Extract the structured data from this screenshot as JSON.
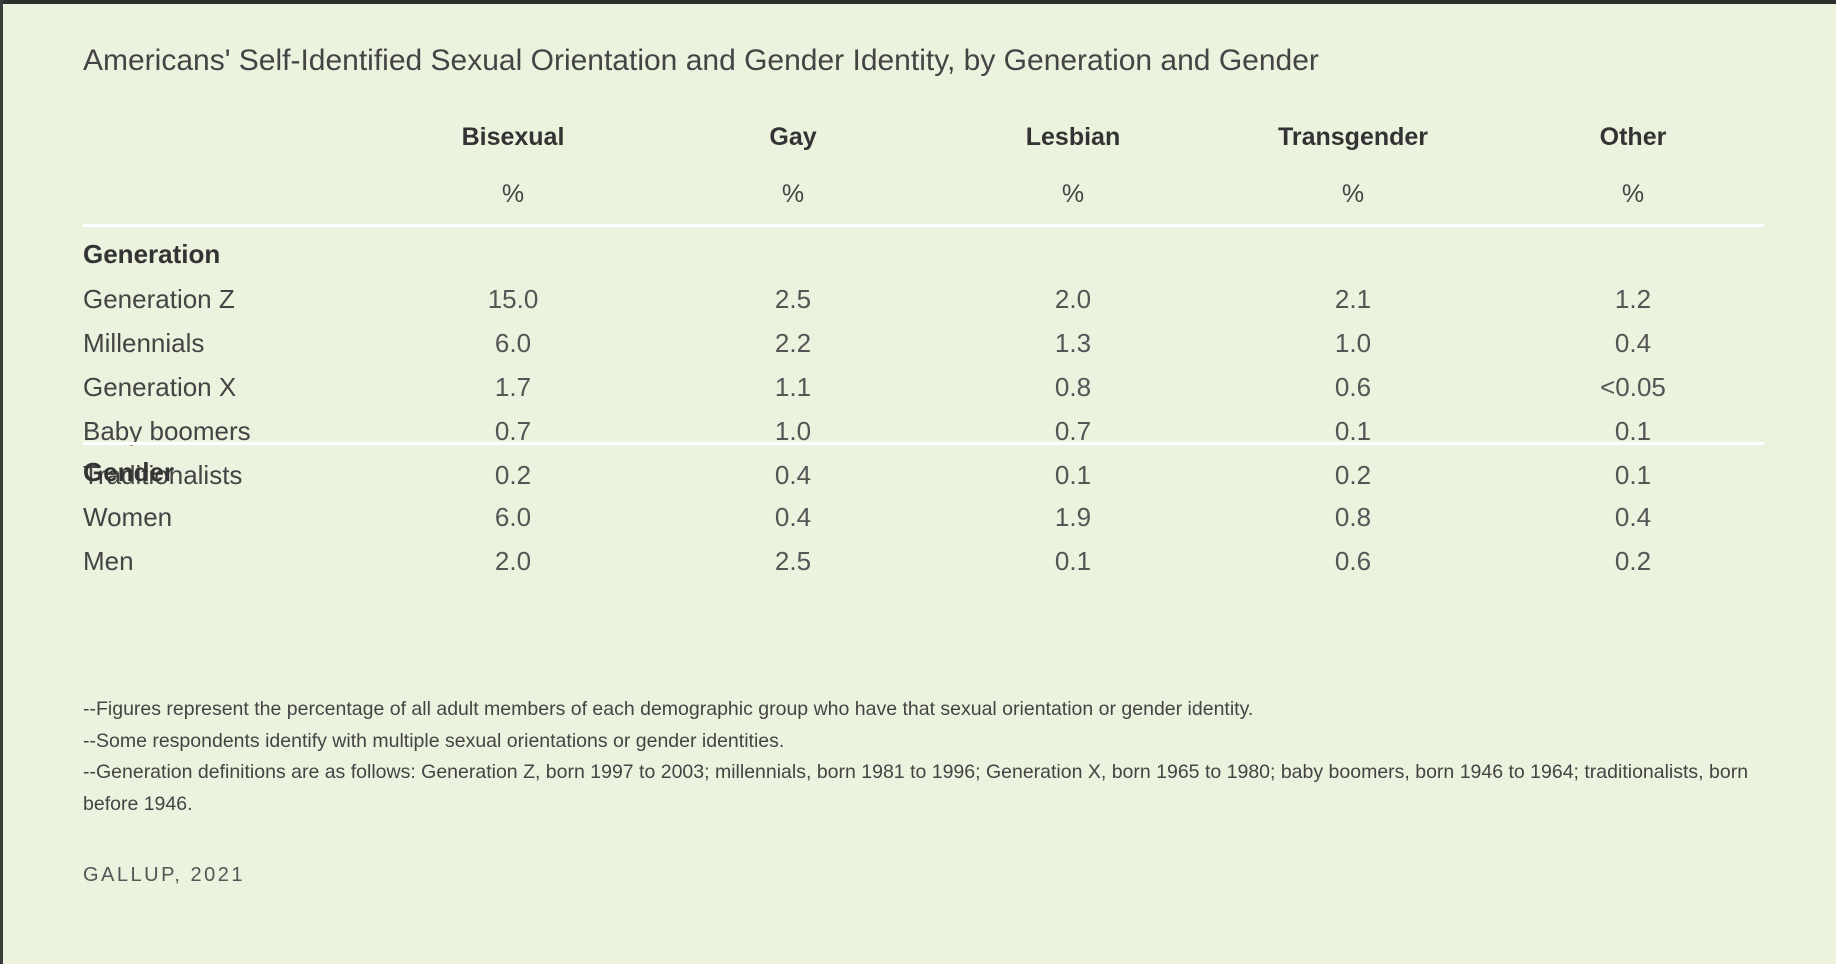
{
  "title": "Americans' Self-Identified Sexual Orientation and Gender Identity, by Generation and Gender",
  "table": {
    "columns": [
      "Bisexual",
      "Gay",
      "Lesbian",
      "Transgender",
      "Other"
    ],
    "units": [
      "%",
      "%",
      "%",
      "%",
      "%"
    ],
    "sections": [
      {
        "label": "Generation",
        "rows": [
          {
            "label": "Generation Z",
            "cells": [
              "15.0",
              "2.5",
              "2.0",
              "2.1",
              "1.2"
            ]
          },
          {
            "label": "Millennials",
            "cells": [
              "6.0",
              "2.2",
              "1.3",
              "1.0",
              "0.4"
            ]
          },
          {
            "label": "Generation X",
            "cells": [
              "1.7",
              "1.1",
              "0.8",
              "0.6",
              "<0.05"
            ]
          },
          {
            "label": "Baby boomers",
            "cells": [
              "0.7",
              "1.0",
              "0.7",
              "0.1",
              "0.1"
            ]
          },
          {
            "label": "Traditionalists",
            "cells": [
              "0.2",
              "0.4",
              "0.1",
              "0.2",
              "0.1"
            ]
          }
        ]
      },
      {
        "label": "Gender",
        "rows": [
          {
            "label": "Women",
            "cells": [
              "6.0",
              "0.4",
              "1.9",
              "0.8",
              "0.4"
            ]
          },
          {
            "label": "Men",
            "cells": [
              "2.0",
              "2.5",
              "0.1",
              "0.6",
              "0.2"
            ]
          }
        ]
      }
    ]
  },
  "footnotes": [
    "--Figures represent the percentage of all adult members of each demographic group who have that sexual orientation or gender identity.",
    "--Some respondents identify with multiple sexual orientations or gender identities.",
    "--Generation definitions are as follows: Generation Z, born 1997 to 2003; millennials, born 1981 to 1996; Generation X, born 1965 to 1980; baby boomers, born 1946 to 1964; traditionalists, born before 1946."
  ],
  "source": "GALLUP, 2021"
}
